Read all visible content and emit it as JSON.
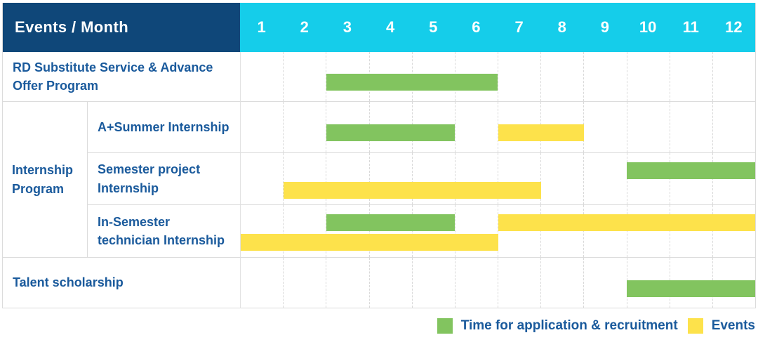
{
  "table": {
    "header_label": "Events / Month",
    "months": [
      "1",
      "2",
      "3",
      "4",
      "5",
      "6",
      "7",
      "8",
      "9",
      "10",
      "11",
      "12"
    ],
    "header_bg": "#0f4779",
    "months_bg": "#15cdea",
    "label_color": "#1a5a9c",
    "grid_line_color": "#d9d9d9"
  },
  "chart_data": {
    "type": "gantt",
    "x_unit": "month",
    "x_ticks": [
      1,
      2,
      3,
      4,
      5,
      6,
      7,
      8,
      9,
      10,
      11,
      12
    ],
    "grid": true,
    "legend_position": "bottom-right",
    "legend": [
      {
        "name": "Time for application & recruitment",
        "key": "recruitment",
        "color": "#82c45f"
      },
      {
        "name": "Events",
        "key": "event",
        "color": "#fde24b"
      }
    ],
    "tasks": [
      {
        "name": "RD Substitute Service & Advance Offer Program",
        "group": null,
        "lines": 1,
        "spans": [
          {
            "series": "recruitment",
            "start_month": 3,
            "end_month": 6,
            "line": 1
          }
        ]
      },
      {
        "name": "A+Summer Internship",
        "group": "Internship Program",
        "lines": 1,
        "spans": [
          {
            "series": "recruitment",
            "start_month": 3,
            "end_month": 5,
            "line": 1
          },
          {
            "series": "event",
            "start_month": 7,
            "end_month": 8,
            "line": 1
          }
        ]
      },
      {
        "name": "Semester project Internship",
        "group": "Internship Program",
        "lines": 2,
        "spans": [
          {
            "series": "recruitment",
            "start_month": 10,
            "end_month": 12,
            "line": 1
          },
          {
            "series": "event",
            "start_month": 2,
            "end_month": 7,
            "line": 2
          }
        ]
      },
      {
        "name": "In-Semester technician Internship",
        "group": "Internship Program",
        "lines": 2,
        "spans": [
          {
            "series": "recruitment",
            "start_month": 3,
            "end_month": 5,
            "line": 1
          },
          {
            "series": "event",
            "start_month": 7,
            "end_month": 12,
            "line": 1
          },
          {
            "series": "event",
            "start_month": 1,
            "end_month": 6,
            "line": 2
          }
        ]
      },
      {
        "name": "Talent scholarship",
        "group": null,
        "lines": 1,
        "spans": [
          {
            "series": "recruitment",
            "start_month": 10,
            "end_month": 12,
            "line": 1
          }
        ]
      }
    ]
  }
}
